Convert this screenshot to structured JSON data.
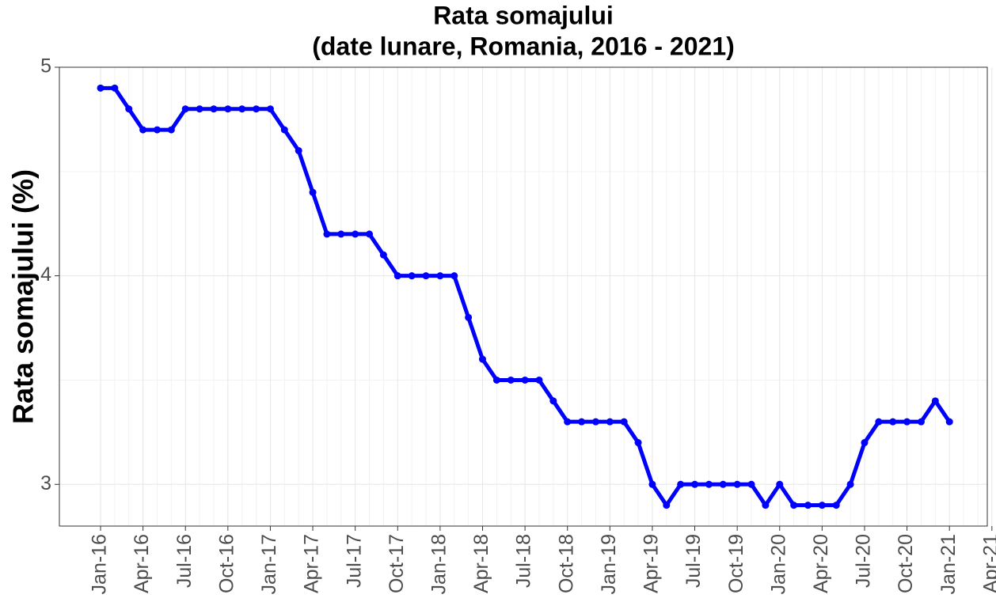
{
  "chart_data": {
    "type": "line",
    "title": "Rata somajului",
    "subtitle": "(date lunare, Romania, 2016 - 2021)",
    "y_label": "Rata somajului (%)",
    "categories": [
      "Jan-16",
      null,
      null,
      "Apr-16",
      null,
      null,
      "Jul-16",
      null,
      null,
      "Oct-16",
      null,
      null,
      "Jan-17",
      null,
      null,
      "Apr-17",
      null,
      null,
      "Jul-17",
      null,
      null,
      "Oct-17",
      null,
      null,
      "Jan-18",
      null,
      null,
      "Apr-18",
      null,
      null,
      "Jul-18",
      null,
      null,
      "Oct-18",
      null,
      null,
      "Jan-19",
      null,
      null,
      "Apr-19",
      null,
      null,
      "Jul-19",
      null,
      null,
      "Oct-19",
      null,
      null,
      "Jan-20",
      null,
      null,
      "Apr-20",
      null,
      null,
      "Jul-20",
      null,
      null,
      "Oct-20",
      null,
      null,
      "Jan-21",
      null,
      null,
      "Apr-21"
    ],
    "values": [
      4.9,
      4.9,
      4.8,
      4.7,
      4.7,
      4.7,
      4.8,
      4.8,
      4.8,
      4.8,
      4.8,
      4.8,
      4.8,
      4.7,
      4.6,
      4.4,
      4.2,
      4.2,
      4.2,
      4.2,
      4.1,
      4.0,
      4.0,
      4.0,
      4.0,
      4.0,
      3.8,
      3.6,
      3.5,
      3.5,
      3.5,
      3.5,
      3.4,
      3.3,
      3.3,
      3.3,
      3.3,
      3.3,
      3.2,
      3.0,
      2.9,
      3.0,
      3.0,
      3.0,
      3.0,
      3.0,
      3.0,
      2.9,
      3.0,
      2.9,
      2.9,
      2.9,
      2.9,
      3.0,
      3.2,
      3.3,
      3.3,
      3.3,
      3.3,
      3.4,
      3.3,
      null,
      null,
      null
    ],
    "color": "#0000ff",
    "ylim": [
      2.8,
      5.0
    ],
    "yticks": [
      3,
      4,
      5
    ],
    "grid": true
  }
}
